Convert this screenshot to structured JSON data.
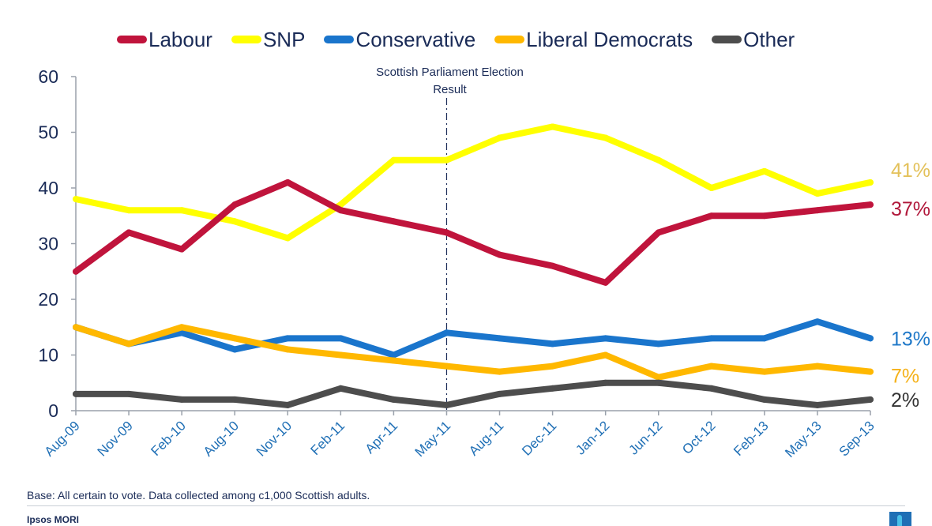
{
  "legend": {
    "labour": "Labour",
    "snp": "SNP",
    "conservative": "Conservative",
    "libdem": "Liberal Democrats",
    "other": "Other"
  },
  "footnote": "Base: All certain to vote. Data collected among c1,000 Scottish adults.",
  "brand": "Ipsos MORI",
  "brand_logo_icon": "ipsos-logo-icon",
  "chart_data": {
    "type": "line",
    "categories": [
      "Aug-09",
      "Nov-09",
      "Feb-10",
      "Aug-10",
      "Nov-10",
      "Feb-11",
      "Apr-11",
      "May-11",
      "Aug-11",
      "Dec-11",
      "Jan-12",
      "Jun-12",
      "Oct-12",
      "Feb-13",
      "May-13",
      "Sep-13"
    ],
    "ylim": [
      0,
      60
    ],
    "yticks": [
      0,
      10,
      20,
      30,
      40,
      50,
      60
    ],
    "grid": false,
    "legend_position": "top",
    "annotation": {
      "category": "May-11",
      "lines": [
        "Scottish Parliament Election",
        "Result"
      ]
    },
    "series": [
      {
        "key": "snp",
        "name": "SNP",
        "color": "#ffff00",
        "values": [
          38,
          36,
          36,
          34,
          31,
          37,
          45,
          45,
          49,
          51,
          49,
          45,
          40,
          43,
          39,
          41
        ],
        "end_label": "41%",
        "end_label_color": "#e3c15a"
      },
      {
        "key": "labour",
        "name": "Labour",
        "color": "#c0143c",
        "values": [
          25,
          32,
          29,
          37,
          41,
          36,
          34,
          32,
          28,
          26,
          23,
          32,
          35,
          35,
          36,
          37
        ],
        "end_label": "37%",
        "end_label_color": "#b0173a"
      },
      {
        "key": "conservative",
        "name": "Conservative",
        "color": "#1a75cc",
        "values": [
          15,
          12,
          14,
          11,
          13,
          13,
          10,
          14,
          13,
          12,
          13,
          12,
          13,
          13,
          16,
          13
        ],
        "end_label": "13%",
        "end_label_color": "#1f78c8"
      },
      {
        "key": "libdem",
        "name": "Liberal Democrats",
        "color": "#ffb800",
        "values": [
          15,
          12,
          15,
          13,
          11,
          10,
          9,
          8,
          7,
          8,
          10,
          6,
          8,
          7,
          8,
          7
        ],
        "end_label": "7%",
        "end_label_color": "#f5b21a"
      },
      {
        "key": "other",
        "name": "Other",
        "color": "#4d4d4d",
        "values": [
          3,
          3,
          2,
          2,
          1,
          4,
          2,
          1,
          3,
          4,
          5,
          5,
          4,
          2,
          1,
          2
        ],
        "end_label": "2%",
        "end_label_color": "#333333"
      }
    ]
  }
}
